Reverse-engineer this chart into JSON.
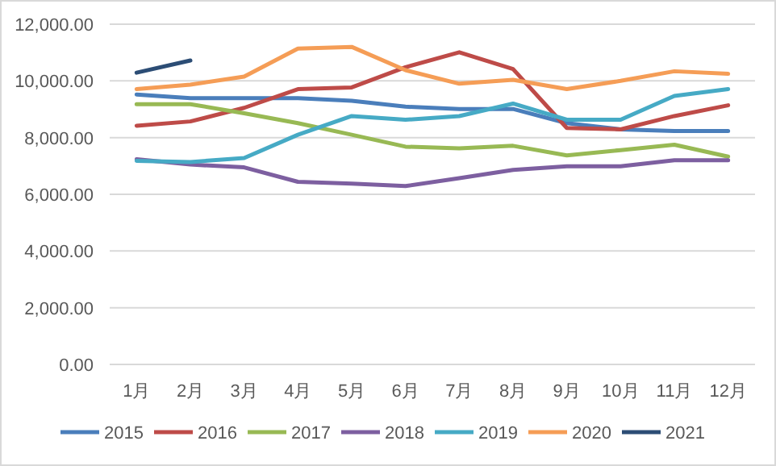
{
  "chart_data": {
    "type": "line",
    "categories": [
      "1月",
      "2月",
      "3月",
      "4月",
      "5月",
      "6月",
      "7月",
      "8月",
      "9月",
      "10月",
      "11月",
      "12月"
    ],
    "ylim": [
      0,
      12000
    ],
    "yticks": [
      {
        "value": 0,
        "label": "0.00"
      },
      {
        "value": 2000,
        "label": "2,000.00"
      },
      {
        "value": 4000,
        "label": "4,000.00"
      },
      {
        "value": 6000,
        "label": "6,000.00"
      },
      {
        "value": 8000,
        "label": "8,000.00"
      },
      {
        "value": 10000,
        "label": "10,000.00"
      },
      {
        "value": 12000,
        "label": "12,000.00"
      }
    ],
    "grid": "y",
    "legend": "bottom",
    "marker": "none",
    "line_style": "solid",
    "series": [
      {
        "name": "2015",
        "color": "#4a7ebb",
        "values": [
          9520,
          9390,
          9390,
          9390,
          9300,
          9090,
          9010,
          9010,
          8510,
          8290,
          8230,
          8230
        ]
      },
      {
        "name": "2016",
        "color": "#be4b48",
        "values": [
          8420,
          8570,
          9050,
          9710,
          9770,
          10480,
          11010,
          10420,
          8340,
          8290,
          8760,
          9140
        ]
      },
      {
        "name": "2017",
        "color": "#98b954",
        "values": [
          9180,
          9180,
          8860,
          8510,
          8100,
          7680,
          7620,
          7710,
          7370,
          7560,
          7750,
          7330
        ]
      },
      {
        "name": "2018",
        "color": "#7d5fa0",
        "values": [
          7240,
          7050,
          6950,
          6440,
          6380,
          6290,
          6570,
          6860,
          6990,
          6990,
          7200,
          7200
        ]
      },
      {
        "name": "2019",
        "color": "#46aac5",
        "values": [
          7180,
          7140,
          7280,
          8100,
          8760,
          8630,
          8760,
          9200,
          8630,
          8630,
          9470,
          9710
        ]
      },
      {
        "name": "2020",
        "color": "#f59d56",
        "values": [
          9710,
          9870,
          10150,
          11140,
          11200,
          10380,
          9900,
          10040,
          9710,
          10000,
          10340,
          10250
        ]
      },
      {
        "name": "2021",
        "color": "#2c4d75",
        "values": [
          10290,
          10720,
          null,
          null,
          null,
          null,
          null,
          null,
          null,
          null,
          null,
          null
        ]
      }
    ]
  }
}
